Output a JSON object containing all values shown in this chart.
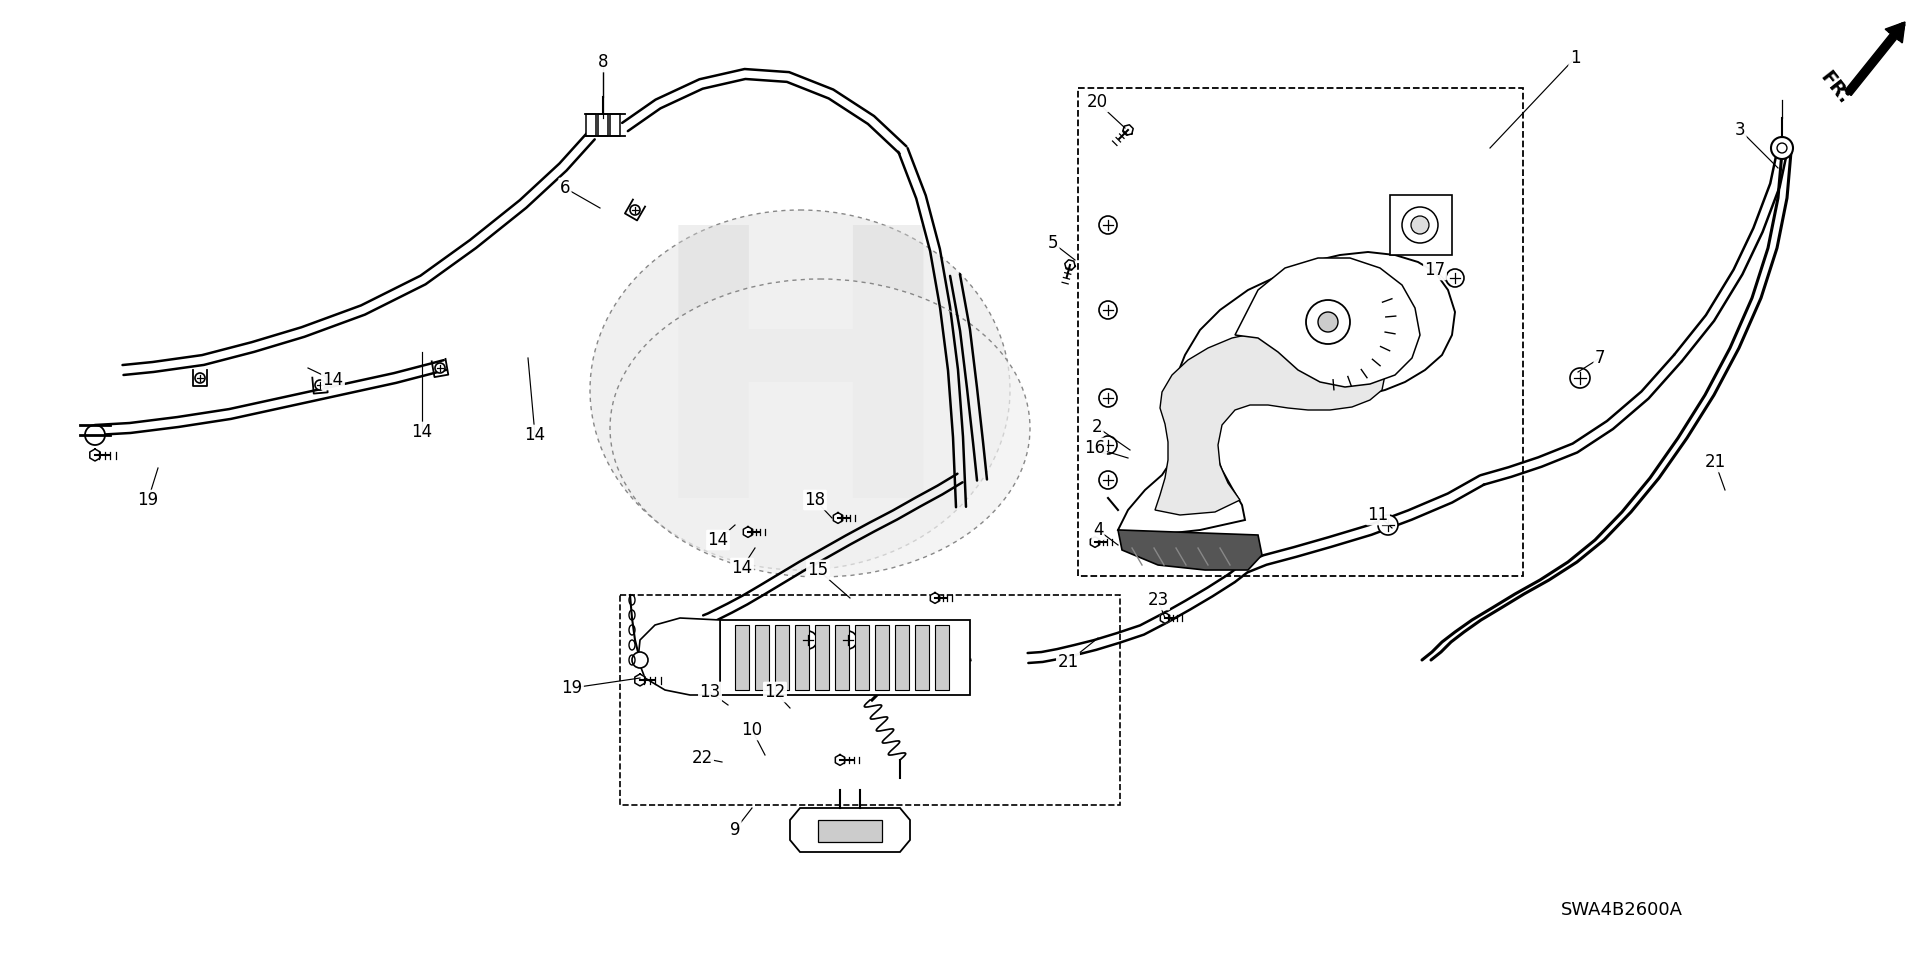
{
  "bg_color": "#ffffff",
  "fig_width": 19.2,
  "fig_height": 9.59,
  "dpi": 100,
  "diagram_code": "SWA4B2600A",
  "lw_cable": 2.2,
  "lw_draw": 1.3,
  "lw_thin": 0.9,
  "part_annotations": [
    [
      "1",
      1575,
      58,
      1490,
      148,
      "left"
    ],
    [
      "2",
      1097,
      427,
      1130,
      450,
      "left"
    ],
    [
      "3",
      1740,
      130,
      1778,
      168,
      "left"
    ],
    [
      "4",
      1098,
      530,
      1118,
      545,
      "left"
    ],
    [
      "5",
      1053,
      243,
      1075,
      260,
      "left"
    ],
    [
      "6",
      565,
      188,
      600,
      208,
      "left"
    ],
    [
      "7",
      1600,
      358,
      1578,
      372,
      "left"
    ],
    [
      "8",
      603,
      62,
      603,
      118,
      "center"
    ],
    [
      "9",
      735,
      830,
      752,
      808,
      "center"
    ],
    [
      "10",
      752,
      730,
      765,
      755,
      "left"
    ],
    [
      "11",
      1378,
      515,
      1392,
      528,
      "left"
    ],
    [
      "12",
      775,
      692,
      790,
      708,
      "left"
    ],
    [
      "13",
      710,
      692,
      728,
      705,
      "left"
    ],
    [
      "14",
      333,
      380,
      308,
      368,
      "left"
    ],
    [
      "14",
      422,
      432,
      422,
      352,
      "center"
    ],
    [
      "14",
      535,
      435,
      528,
      358,
      "left"
    ],
    [
      "14",
      718,
      540,
      735,
      525,
      "left"
    ],
    [
      "14",
      742,
      568,
      755,
      548,
      "left"
    ],
    [
      "15",
      818,
      570,
      850,
      598,
      "left"
    ],
    [
      "16",
      1095,
      448,
      1128,
      458,
      "left"
    ],
    [
      "17",
      1435,
      270,
      1450,
      285,
      "left"
    ],
    [
      "18",
      815,
      500,
      832,
      518,
      "left"
    ],
    [
      "19",
      148,
      500,
      158,
      468,
      "center"
    ],
    [
      "19",
      572,
      688,
      640,
      678,
      "left"
    ],
    [
      "20",
      1097,
      102,
      1125,
      128,
      "left"
    ],
    [
      "21",
      1068,
      662,
      1098,
      638,
      "left"
    ],
    [
      "21",
      1715,
      462,
      1725,
      490,
      "left"
    ],
    [
      "22",
      702,
      758,
      722,
      762,
      "left"
    ],
    [
      "23",
      1158,
      600,
      1165,
      618,
      "left"
    ]
  ]
}
